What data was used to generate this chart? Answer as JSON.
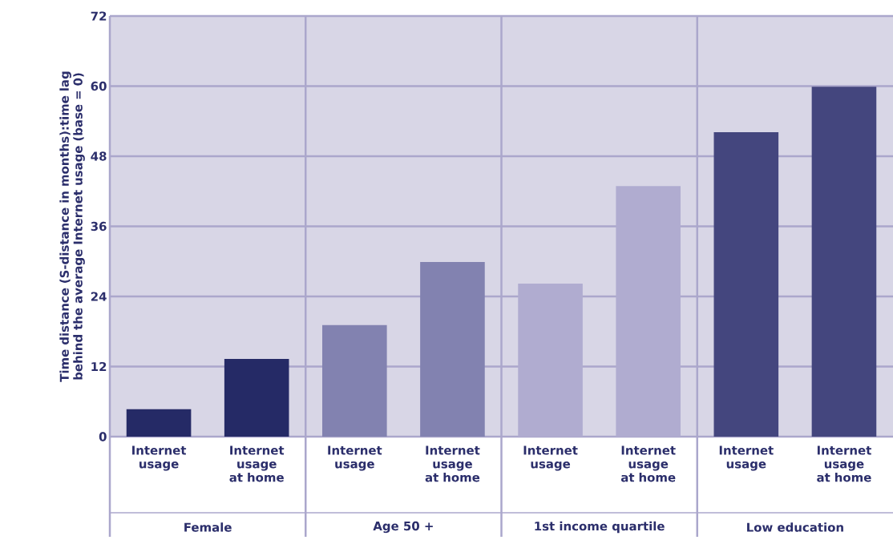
{
  "chart_data": {
    "type": "bar",
    "ylabel": "Time distance (S-distance in months):time lag behind the average Internet usage (base = 0)",
    "categories": [
      "Internet usage",
      "Internet usage at home",
      "Internet usage",
      "Internet usage at home",
      "Internet usage",
      "Internet usage at home",
      "Internet usage",
      "Internet usage at home"
    ],
    "values": [
      4.7,
      13.3,
      19.1,
      29.9,
      26.2,
      42.9,
      52.1,
      59.9
    ],
    "colors": [
      "#252a66",
      "#252a66",
      "#8282b0",
      "#8282b0",
      "#b0acd0",
      "#b0acd0",
      "#44467e",
      "#44467e"
    ],
    "ylim": [
      0,
      72
    ],
    "yticks": [
      0,
      12,
      24,
      36,
      48,
      60,
      72
    ],
    "grid": "y",
    "annotations": [
      "Female",
      "Age 50 +",
      "1st income quartile",
      "Low education"
    ]
  }
}
